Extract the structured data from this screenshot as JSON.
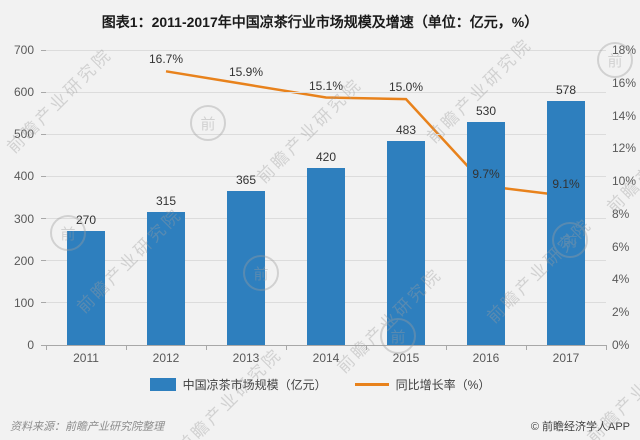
{
  "title": "图表1：2011-2017年中国凉茶行业市场规模及增速（单位：亿元，%）",
  "chart_data": {
    "type": "bar+line",
    "categories": [
      "2011",
      "2012",
      "2013",
      "2014",
      "2015",
      "2016",
      "2017"
    ],
    "series": [
      {
        "name": "中国凉茶市场规模（亿元）",
        "type": "bar",
        "color": "#2E7FBE",
        "values": [
          270,
          315,
          365,
          420,
          483,
          530,
          578
        ],
        "labels": [
          "270",
          "315",
          "365",
          "420",
          "483",
          "530",
          "578"
        ]
      },
      {
        "name": "同比增长率（%）",
        "type": "line",
        "color": "#E8821C",
        "values": [
          null,
          16.7,
          15.9,
          15.1,
          15.0,
          9.7,
          9.1
        ],
        "labels": [
          null,
          "16.7%",
          "15.9%",
          "15.1%",
          "15.0%",
          "9.7%",
          "9.1%"
        ]
      }
    ],
    "left_axis": {
      "min": 0,
      "max": 700,
      "step": 100,
      "ticks": [
        "0",
        "100",
        "200",
        "300",
        "400",
        "500",
        "600",
        "700"
      ]
    },
    "right_axis": {
      "min": 0,
      "max": 18,
      "step": 2,
      "ticks": [
        "0%",
        "2%",
        "4%",
        "6%",
        "8%",
        "10%",
        "12%",
        "14%",
        "16%",
        "18%"
      ]
    },
    "grid": true,
    "legend_position": "bottom"
  },
  "watermark": "前瞻产业研究院",
  "watermark_logo": "前",
  "footer": {
    "source": "资料来源：前瞻产业研究院整理",
    "copyright": "© 前瞻经济学人APP"
  }
}
